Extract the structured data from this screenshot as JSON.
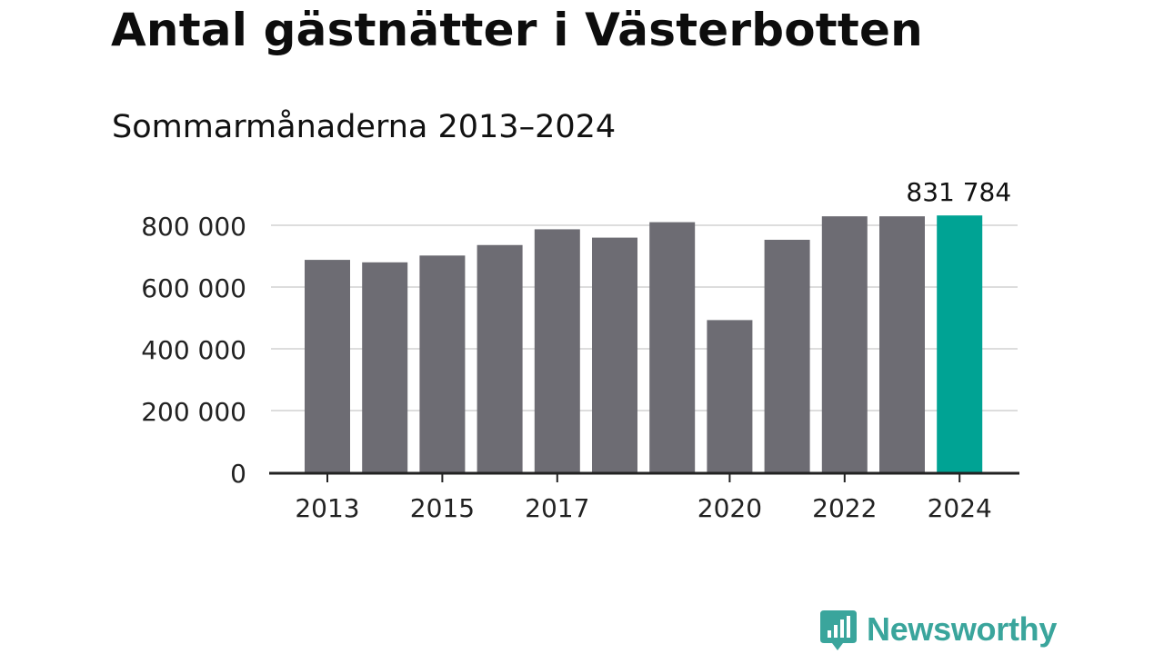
{
  "title": "Antal gästnätter i Västerbotten",
  "subtitle": "Sommarmånaderna 2013–2024",
  "brand": "Newsworthy",
  "colors": {
    "bar": "#6d6c73",
    "highlight": "#00a394",
    "brand": "#3aa59c",
    "grid": "#dddddd",
    "axis": "#222222"
  },
  "chart_data": {
    "type": "bar",
    "categories": [
      "2013",
      "2014",
      "2015",
      "2016",
      "2017",
      "2018",
      "2019",
      "2020",
      "2021",
      "2022",
      "2023",
      "2024"
    ],
    "values": [
      688000,
      680000,
      702000,
      736000,
      787000,
      760000,
      810000,
      493000,
      753000,
      829000,
      829000,
      831784
    ],
    "highlight_index": 11,
    "data_label": "831 784",
    "x_tick_labels": [
      "2013",
      "2015",
      "2017",
      "2020",
      "2022",
      "2024"
    ],
    "y_ticks": [
      0,
      200000,
      400000,
      600000,
      800000
    ],
    "y_tick_labels": [
      "0",
      "200 000",
      "400 000",
      "600 000",
      "800 000"
    ],
    "ylim": [
      0,
      800000
    ],
    "grid": true,
    "legend": "none"
  }
}
